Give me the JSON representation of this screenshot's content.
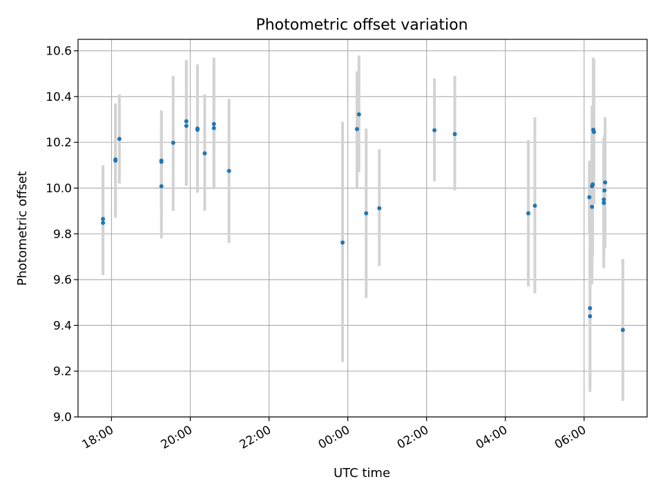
{
  "chart_data": {
    "type": "scatter",
    "title": "Photometric offset variation",
    "xlabel": "UTC time",
    "ylabel": "Photometric offset",
    "ylim": [
      9.0,
      10.65
    ],
    "yticks": [
      "9.0",
      "9.2",
      "9.4",
      "9.6",
      "9.8",
      "10.0",
      "10.2",
      "10.4",
      "10.6"
    ],
    "xlim_hours": [
      17.15,
      31.6
    ],
    "xticks": [
      "18:00",
      "20:00",
      "22:00",
      "00:00",
      "02:00",
      "04:00",
      "06:00"
    ],
    "grid": true,
    "point_color": "#1f77b4",
    "errorbar_color": "#d3d3d3",
    "points": [
      {
        "t": "17:47",
        "y": 9.865,
        "lo": 9.62,
        "hi": 10.1
      },
      {
        "t": "17:47",
        "y": 9.848,
        "lo": 9.63,
        "hi": 10.08
      },
      {
        "t": "18:06",
        "y": 10.125,
        "lo": 9.88,
        "hi": 10.37
      },
      {
        "t": "18:06",
        "y": 10.12,
        "lo": 9.87,
        "hi": 10.36
      },
      {
        "t": "18:12",
        "y": 10.215,
        "lo": 10.02,
        "hi": 10.41
      },
      {
        "t": "19:16",
        "y": 10.12,
        "lo": 9.9,
        "hi": 10.34
      },
      {
        "t": "19:16",
        "y": 10.115,
        "lo": 9.89,
        "hi": 10.33
      },
      {
        "t": "19:16",
        "y": 10.008,
        "lo": 9.78,
        "hi": 10.24
      },
      {
        "t": "19:34",
        "y": 10.198,
        "lo": 9.9,
        "hi": 10.49
      },
      {
        "t": "19:54",
        "y": 10.292,
        "lo": 10.01,
        "hi": 10.56
      },
      {
        "t": "19:54",
        "y": 10.272,
        "lo": 10.01,
        "hi": 10.56
      },
      {
        "t": "20:11",
        "y": 10.26,
        "lo": 9.98,
        "hi": 10.54
      },
      {
        "t": "20:11",
        "y": 10.255,
        "lo": 9.98,
        "hi": 10.53
      },
      {
        "t": "20:22",
        "y": 10.152,
        "lo": 9.9,
        "hi": 10.41
      },
      {
        "t": "20:36",
        "y": 10.28,
        "lo": 10.0,
        "hi": 10.57
      },
      {
        "t": "20:36",
        "y": 10.262,
        "lo": 10.0,
        "hi": 10.54
      },
      {
        "t": "20:59",
        "y": 10.075,
        "lo": 9.76,
        "hi": 10.39
      },
      {
        "t": "23:52",
        "y": 9.762,
        "lo": 9.24,
        "hi": 10.29
      },
      {
        "t": "00:14",
        "y": 10.258,
        "lo": 10.0,
        "hi": 10.51
      },
      {
        "t": "00:17",
        "y": 10.322,
        "lo": 10.07,
        "hi": 10.58
      },
      {
        "t": "00:28",
        "y": 9.89,
        "lo": 9.52,
        "hi": 10.26
      },
      {
        "t": "00:48",
        "y": 9.912,
        "lo": 9.66,
        "hi": 10.17
      },
      {
        "t": "02:12",
        "y": 10.253,
        "lo": 10.03,
        "hi": 10.48
      },
      {
        "t": "02:43",
        "y": 10.236,
        "lo": 9.99,
        "hi": 10.49
      },
      {
        "t": "04:35",
        "y": 9.89,
        "lo": 9.57,
        "hi": 10.21
      },
      {
        "t": "04:45",
        "y": 9.923,
        "lo": 9.54,
        "hi": 10.31
      },
      {
        "t": "06:08",
        "y": 9.96,
        "lo": 9.8,
        "hi": 10.12
      },
      {
        "t": "06:09",
        "y": 9.475,
        "lo": 9.11,
        "hi": 9.84
      },
      {
        "t": "06:09",
        "y": 9.44,
        "lo": 9.13,
        "hi": 9.75
      },
      {
        "t": "06:12",
        "y": 9.918,
        "lo": 9.58,
        "hi": 10.26
      },
      {
        "t": "06:12",
        "y": 10.008,
        "lo": 9.65,
        "hi": 10.36
      },
      {
        "t": "06:13",
        "y": 10.016,
        "lo": 9.7,
        "hi": 10.33
      },
      {
        "t": "06:14",
        "y": 10.255,
        "lo": 9.94,
        "hi": 10.57
      },
      {
        "t": "06:15",
        "y": 10.245,
        "lo": 9.93,
        "hi": 10.56
      },
      {
        "t": "06:30",
        "y": 9.95,
        "lo": 9.71,
        "hi": 10.19
      },
      {
        "t": "06:30",
        "y": 9.935,
        "lo": 9.65,
        "hi": 10.22
      },
      {
        "t": "06:32",
        "y": 10.025,
        "lo": 9.74,
        "hi": 10.31
      },
      {
        "t": "06:31",
        "y": 9.99,
        "lo": 9.75,
        "hi": 10.23
      },
      {
        "t": "06:59",
        "y": 9.38,
        "lo": 9.07,
        "hi": 9.69
      }
    ]
  }
}
